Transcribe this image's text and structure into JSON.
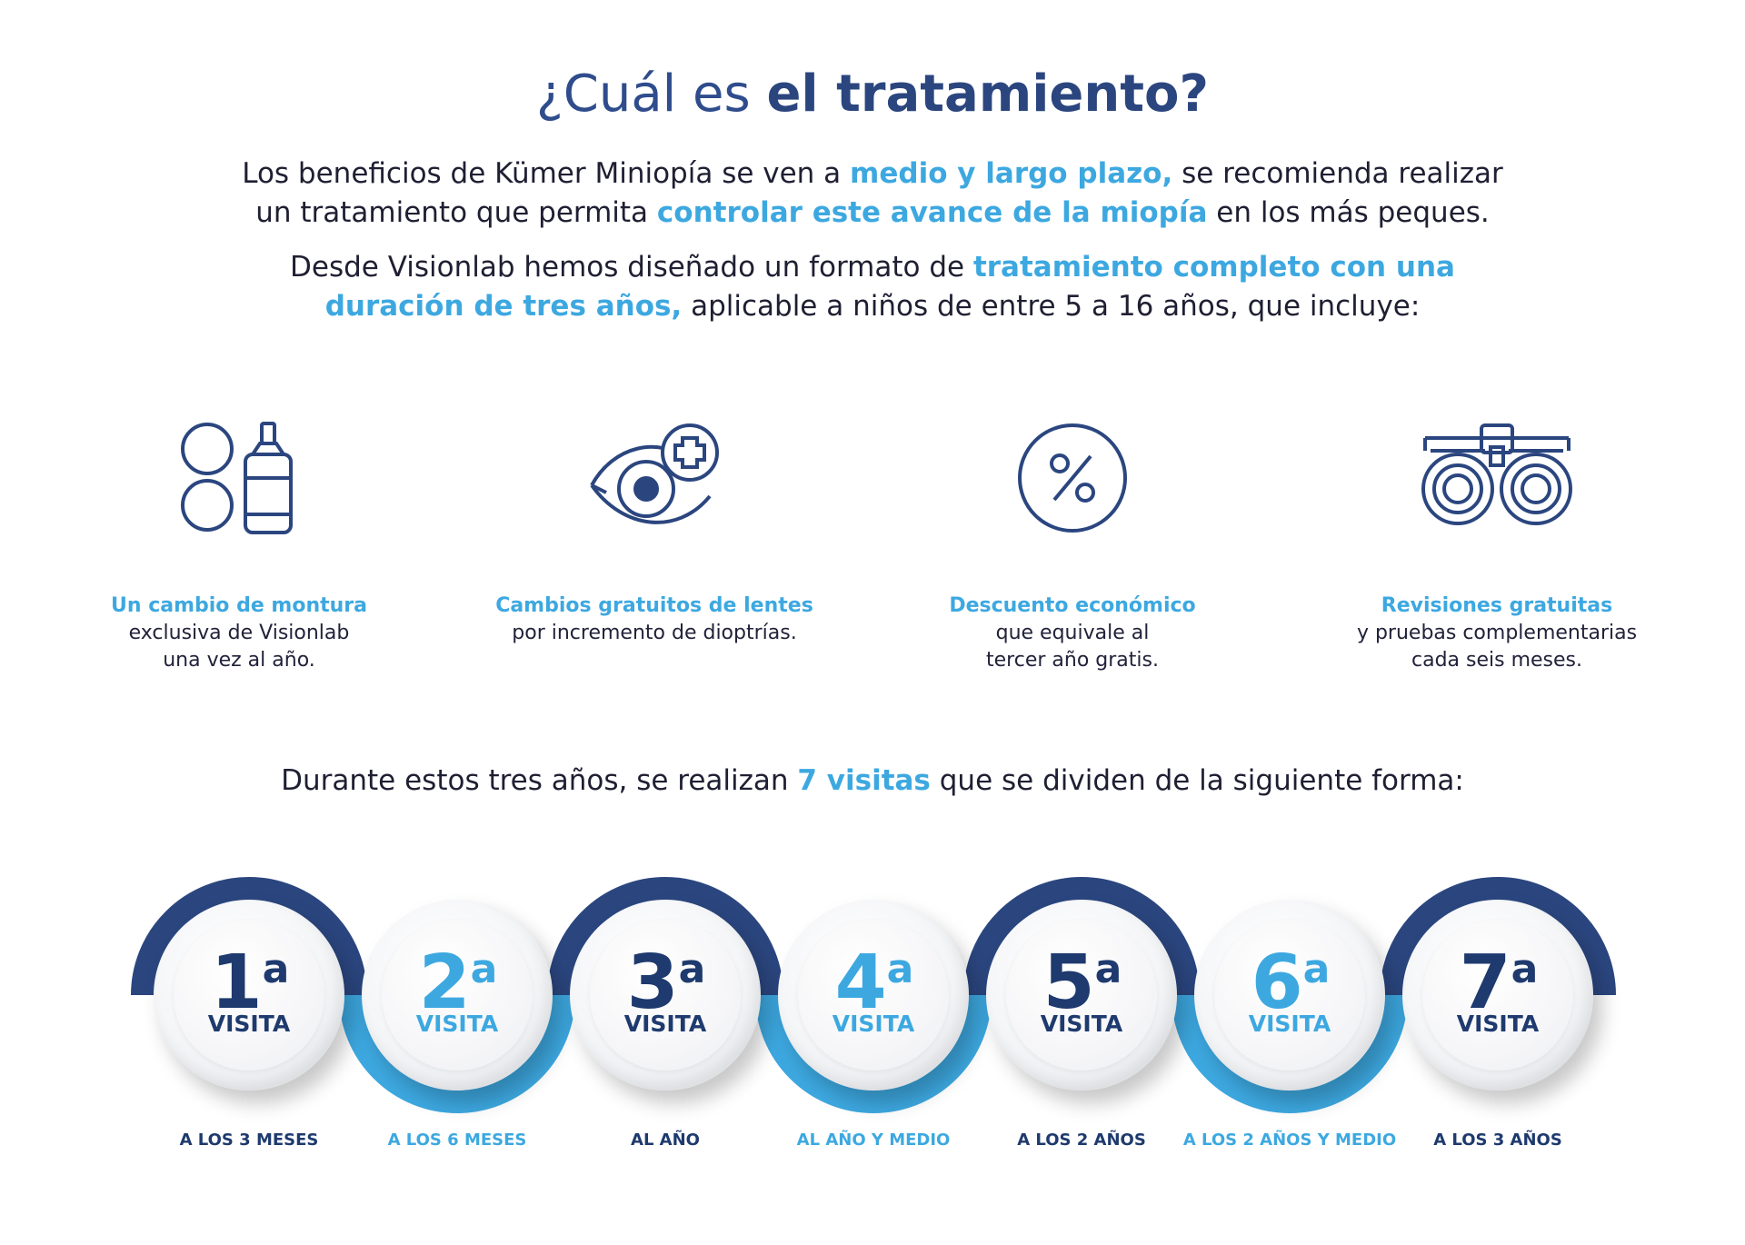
{
  "title": {
    "part1": "¿Cuál es ",
    "part2": "el tratamiento?"
  },
  "intro1": {
    "line1_a": "Los beneficios de Kümer Miniopía se ven a ",
    "line1_hl": "medio y largo plazo,",
    "line1_b": " se recomienda realizar",
    "line2_a": "un tratamiento que permita ",
    "line2_hl": "controlar este avance de la miopía",
    "line2_b": " en los más peques."
  },
  "intro2": {
    "line1_a": "Desde Visionlab hemos diseñado un formato de ",
    "line1_hl": "tratamiento completo con una",
    "line2_hl": "duración de tres años,",
    "line2_b": " aplicable a niños de entre 5 a 16 años, que incluye:"
  },
  "features": [
    {
      "icon": "contact-lens-drops-icon",
      "title": "Un cambio de montura",
      "line1": "exclusiva de Visionlab",
      "line2": "una vez al año."
    },
    {
      "icon": "eye-plus-icon",
      "title": "Cambios gratuitos de lentes",
      "line1": "por incremento de dioptrías.",
      "line2": ""
    },
    {
      "icon": "percent-icon",
      "title": "Descuento económico",
      "line1": "que equivale al",
      "line2": "tercer año gratis."
    },
    {
      "icon": "trial-frame-icon",
      "title": "Revisiones gratuitas",
      "line1": "y pruebas complementarias",
      "line2": "cada seis meses."
    }
  ],
  "visits_intro": {
    "a": "Durante estos tres años, se realizan ",
    "hl": "7 visitas",
    "b": " que se dividen de la siguiente forma:"
  },
  "visits": [
    {
      "num": "1",
      "sup": "a",
      "label": "VISITA",
      "when": "A LOS 3 MESES"
    },
    {
      "num": "2",
      "sup": "a",
      "label": "VISITA",
      "when": "A LOS 6 MESES"
    },
    {
      "num": "3",
      "sup": "a",
      "label": "VISITA",
      "when": "AL AÑO"
    },
    {
      "num": "4",
      "sup": "a",
      "label": "VISITA",
      "when": "AL AÑO Y MEDIO"
    },
    {
      "num": "5",
      "sup": "a",
      "label": "VISITA",
      "when": "A LOS 2 AÑOS"
    },
    {
      "num": "6",
      "sup": "a",
      "label": "VISITA",
      "when": "A LOS 2 AÑOS Y MEDIO"
    },
    {
      "num": "7",
      "sup": "a",
      "label": "VISITA",
      "when": "A LOS 3 AÑOS"
    }
  ],
  "colors": {
    "dark_blue": "#2b467f",
    "light_blue": "#3da8e0",
    "text": "#1f1f33"
  }
}
